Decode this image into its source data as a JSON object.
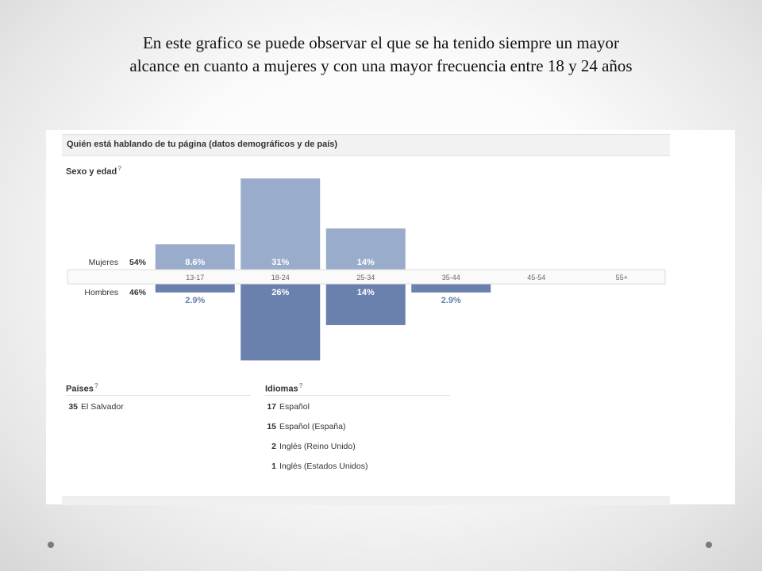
{
  "slide": {
    "title_line1": "En este  grafico se  puede  observar  el   que   se  ha  tenido siempre  un mayor",
    "title_line2": "alcance  en  cuanto a mujeres  y con una mayor  frecuencia   entre    18 y 24  años"
  },
  "panel": {
    "header": "Quién está hablando de tu página (datos demográficos y de país)",
    "section_title": "Sexo y edad",
    "help_mark": "?"
  },
  "chart_data": {
    "type": "bar",
    "title": "Sexo y edad",
    "categories": [
      "13-17",
      "18-24",
      "25-34",
      "35-44",
      "45-54",
      "55+"
    ],
    "series": [
      {
        "name": "Mujeres",
        "total": "54%",
        "values": [
          8.6,
          31,
          14,
          null,
          null,
          null
        ],
        "labels": [
          "8.6%",
          "31%",
          "14%",
          "",
          "",
          ""
        ],
        "color": "#9aaccb"
      },
      {
        "name": "Hombres",
        "total": "46%",
        "values": [
          2.9,
          26,
          14,
          2.9,
          null,
          null
        ],
        "labels": [
          "2.9%",
          "26%",
          "14%",
          "2.9%",
          "",
          ""
        ],
        "color": "#6a80ad"
      }
    ],
    "ylim": [
      0,
      31
    ],
    "layout": "mirrored"
  },
  "countries": {
    "title": "Países",
    "items": [
      {
        "count": "35",
        "name": "El Salvador"
      }
    ]
  },
  "languages": {
    "title": "Idiomas",
    "items": [
      {
        "count": "17",
        "name": "Español"
      },
      {
        "count": "15",
        "name": "Español (España)"
      },
      {
        "count": "2",
        "name": "Inglés (Reino Unido)"
      },
      {
        "count": "1",
        "name": "Inglés (Estados Unidos)"
      }
    ]
  }
}
